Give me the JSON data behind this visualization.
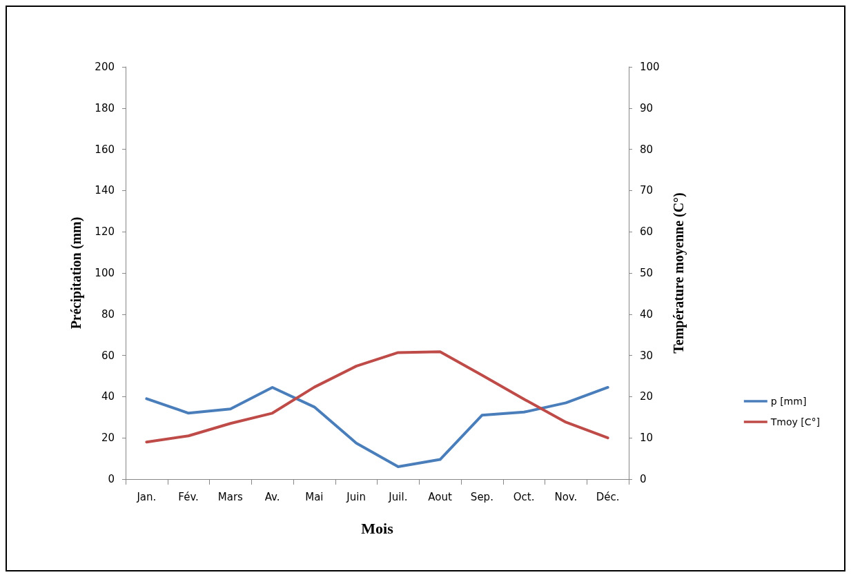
{
  "chart_data": {
    "type": "line",
    "xlabel": "Mois",
    "ylabel": "Précipitation (mm)",
    "y2label": "Température moyenne (C°)",
    "categories": [
      "Jan.",
      "Fév.",
      "Mars",
      "Av.",
      "Mai",
      "Juin",
      "Juil.",
      "Aout",
      "Sep.",
      "Oct.",
      "Nov.",
      "Déc."
    ],
    "series": [
      {
        "name": "p [mm]",
        "color": "#4a7ebb",
        "values": [
          39,
          32,
          34,
          44.5,
          35,
          17.5,
          6,
          9.5,
          31,
          32.5,
          37,
          44.5
        ]
      },
      {
        "name": "Tmoy [C°]",
        "color": "#be4b48",
        "axis": "y2",
        "values": [
          9,
          10.5,
          13.5,
          16,
          22.3,
          27.4,
          30.7,
          30.9,
          25.2,
          19.4,
          13.8,
          10
        ]
      }
    ],
    "ylim": [
      0,
      200
    ],
    "yticks": [
      0,
      20,
      40,
      60,
      80,
      100,
      120,
      140,
      160,
      180,
      200
    ],
    "y2lim": [
      0,
      100
    ],
    "y2ticks": [
      0,
      10,
      20,
      30,
      40,
      50,
      60,
      70,
      80,
      90,
      100
    ],
    "grid": false,
    "legend": "right",
    "marker": "none",
    "line_style": "solid"
  }
}
